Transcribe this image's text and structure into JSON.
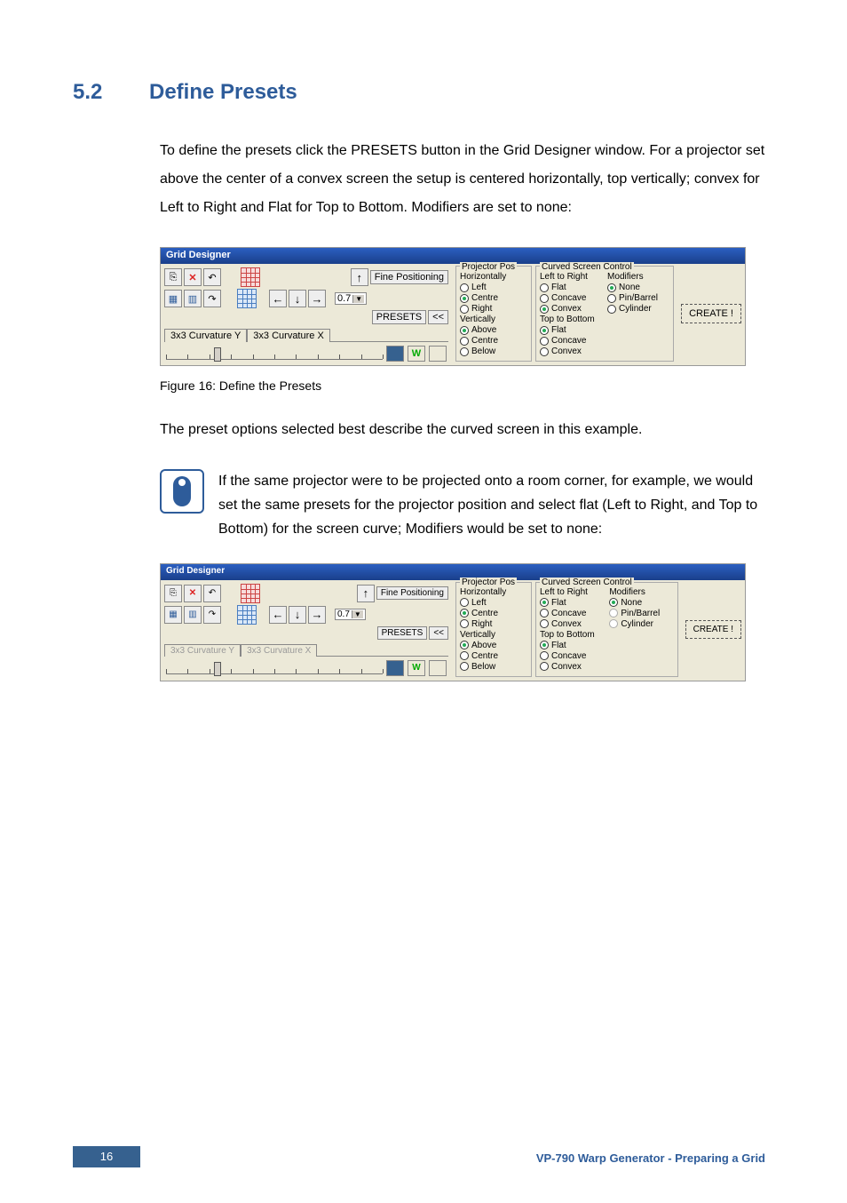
{
  "section": {
    "number": "5.2",
    "title": "Define Presets"
  },
  "para1": "To define the presets click the PRESETS button in the Grid Designer window. For a projector set above the center of a convex screen the setup is centered horizontally, top vertically; convex for Left to Right and Flat for Top to Bottom. Modifiers are set to none:",
  "caption1": "Figure 16: Define the Presets",
  "para2": "The preset options selected best describe the curved screen in this example.",
  "note": "If the same projector were to be projected onto a room corner, for example, we would set the same presets for the projector position and select flat (Left to Right, and Top to Bottom) for the screen curve; Modifiers would be set to none:",
  "footer": {
    "page": "16",
    "text": "VP-790 Warp Generator - Preparing a Grid"
  },
  "gd": {
    "title": "Grid Designer",
    "fine_pos": "Fine Positioning",
    "step": "0.7",
    "presets_btn": "PRESETS",
    "collapse": "<<",
    "tab_y": "3x3 Curvature Y",
    "tab_x": "3x3 Curvature X",
    "create": "CREATE !",
    "proj": {
      "legend": "Projector Pos",
      "h_label": "Horizontally",
      "h": [
        "Left",
        "Centre",
        "Right"
      ],
      "v_label": "Vertically",
      "v": [
        "Above",
        "Centre",
        "Below"
      ]
    },
    "curve": {
      "legend": "Curved Screen Control",
      "lr_label": "Left to Right",
      "tb_label": "Top to Bottom",
      "opts": [
        "Flat",
        "Concave",
        "Convex"
      ],
      "mod_label": "Modifiers",
      "mods": [
        "None",
        "Pin/Barrel",
        "Cylinder"
      ]
    }
  },
  "state1": {
    "h_sel": "Centre",
    "v_sel": "Above",
    "lr_sel": "Convex",
    "tb_sel": "Flat",
    "mod_sel": "None",
    "tabs_enabled": true
  },
  "state2": {
    "h_sel": "Centre",
    "v_sel": "Above",
    "lr_sel": "Flat",
    "tb_sel": "Flat",
    "mod_sel": "None",
    "tabs_enabled": false
  },
  "colors": {
    "heading": "#2e5c9a",
    "titlebar_top": "#2b5fc1",
    "titlebar_bottom": "#1a3f8a",
    "panel": "#ece9d8",
    "page_box": "#36618f"
  }
}
